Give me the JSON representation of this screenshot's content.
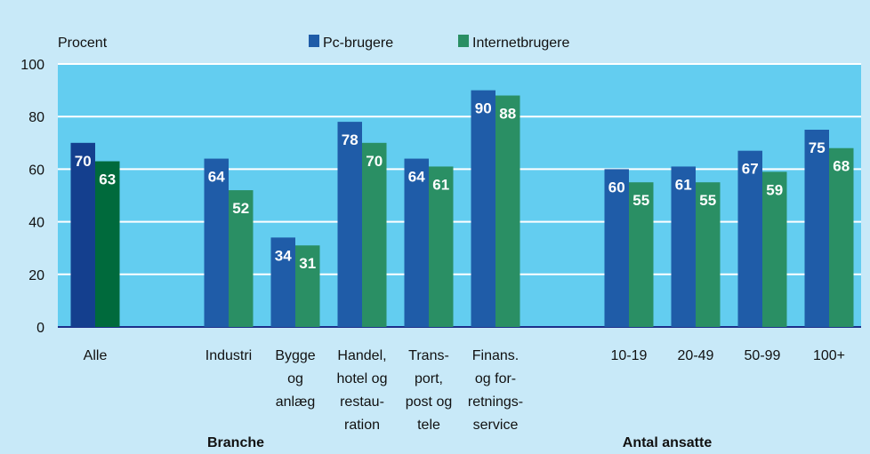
{
  "chart_data": {
    "type": "bar",
    "y_label": "Procent",
    "categories": [
      "Alle",
      null,
      "Industri",
      "Bygge\nog\nanlæg",
      "Handel,\nhotel og\nrestau-\nration",
      "Trans-\nport,\npost og\ntele",
      "Finans.\nog for-\nretnings-\nservice",
      null,
      "10-19",
      "20-49",
      "50-99",
      "100+"
    ],
    "series": [
      {
        "name": "Pc-brugere",
        "color": "#1f5ca8",
        "highlight_color": "#143f8e",
        "values": [
          70,
          null,
          64,
          34,
          78,
          64,
          90,
          null,
          60,
          61,
          67,
          75
        ]
      },
      {
        "name": "Internetbrugere",
        "color": "#2a8f64",
        "highlight_color": "#006a3c",
        "values": [
          63,
          null,
          52,
          31,
          70,
          61,
          88,
          null,
          55,
          55,
          59,
          68
        ]
      }
    ],
    "highlight_index": 0,
    "group_labels": [
      "Branche",
      "Antal ansatte"
    ],
    "ylim": [
      0,
      100
    ],
    "yticks": [
      0,
      20,
      40,
      60,
      80,
      100
    ],
    "grid": true
  }
}
